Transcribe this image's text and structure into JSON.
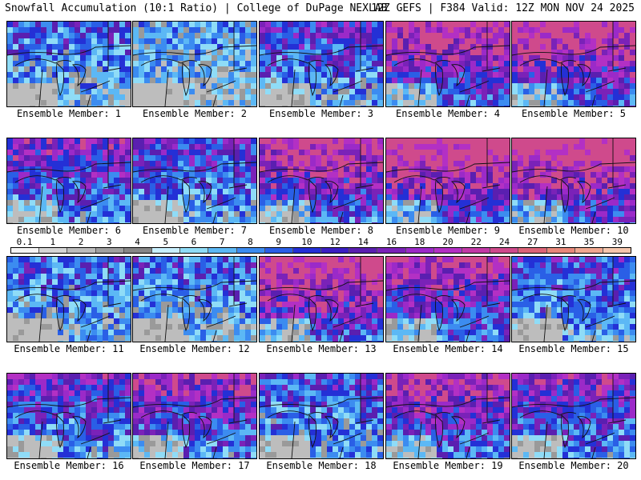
{
  "header": {
    "title_left": "Snowfall Accumulation (10:1 Ratio) | College of DuPage NEXLAB",
    "title_right": "12Z GEFS | F384 Valid: 12Z MON NOV 24 2025"
  },
  "colorbar": {
    "ticks": [
      "0.1",
      "1",
      "2",
      "3",
      "4",
      "5",
      "6",
      "7",
      "8",
      "9",
      "10",
      "12",
      "14",
      "16",
      "18",
      "20",
      "22",
      "24",
      "27",
      "31",
      "35",
      "39"
    ],
    "colors": [
      "#f4f4f4",
      "#d6d6d6",
      "#bcbcbc",
      "#a0a0a0",
      "#878787",
      "#c8f0ff",
      "#8fdcf7",
      "#5cb8f5",
      "#3c8cf0",
      "#2a5fe6",
      "#2430d6",
      "#3b1fc2",
      "#5a1fb0",
      "#7a22b8",
      "#9b2ac8",
      "#b330c4",
      "#c23aa6",
      "#cf4a8c",
      "#dc6478",
      "#e8887a",
      "#f0a890",
      "#f6c6ad"
    ]
  },
  "panels": [
    {
      "label": "Ensemble Member: 1",
      "intensity": 0.35
    },
    {
      "label": "Ensemble Member: 2",
      "intensity": 0.25
    },
    {
      "label": "Ensemble Member: 3",
      "intensity": 0.45
    },
    {
      "label": "Ensemble Member: 4",
      "intensity": 0.7
    },
    {
      "label": "Ensemble Member: 5",
      "intensity": 0.75
    },
    {
      "label": "Ensemble Member: 6",
      "intensity": 0.55
    },
    {
      "label": "Ensemble Member: 7",
      "intensity": 0.45
    },
    {
      "label": "Ensemble Member: 8",
      "intensity": 0.7
    },
    {
      "label": "Ensemble Member: 9",
      "intensity": 0.8
    },
    {
      "label": "Ensemble Member: 10",
      "intensity": 0.8
    },
    {
      "label": "Ensemble Member: 11",
      "intensity": 0.35
    },
    {
      "label": "Ensemble Member: 12",
      "intensity": 0.35
    },
    {
      "label": "Ensemble Member: 13",
      "intensity": 0.75
    },
    {
      "label": "Ensemble Member: 14",
      "intensity": 0.65
    },
    {
      "label": "Ensemble Member: 15",
      "intensity": 0.4
    },
    {
      "label": "Ensemble Member: 16",
      "intensity": 0.5
    },
    {
      "label": "Ensemble Member: 17",
      "intensity": 0.6
    },
    {
      "label": "Ensemble Member: 18",
      "intensity": 0.4
    },
    {
      "label": "Ensemble Member: 19",
      "intensity": 0.65
    },
    {
      "label": "Ensemble Member: 20",
      "intensity": 0.55
    }
  ]
}
